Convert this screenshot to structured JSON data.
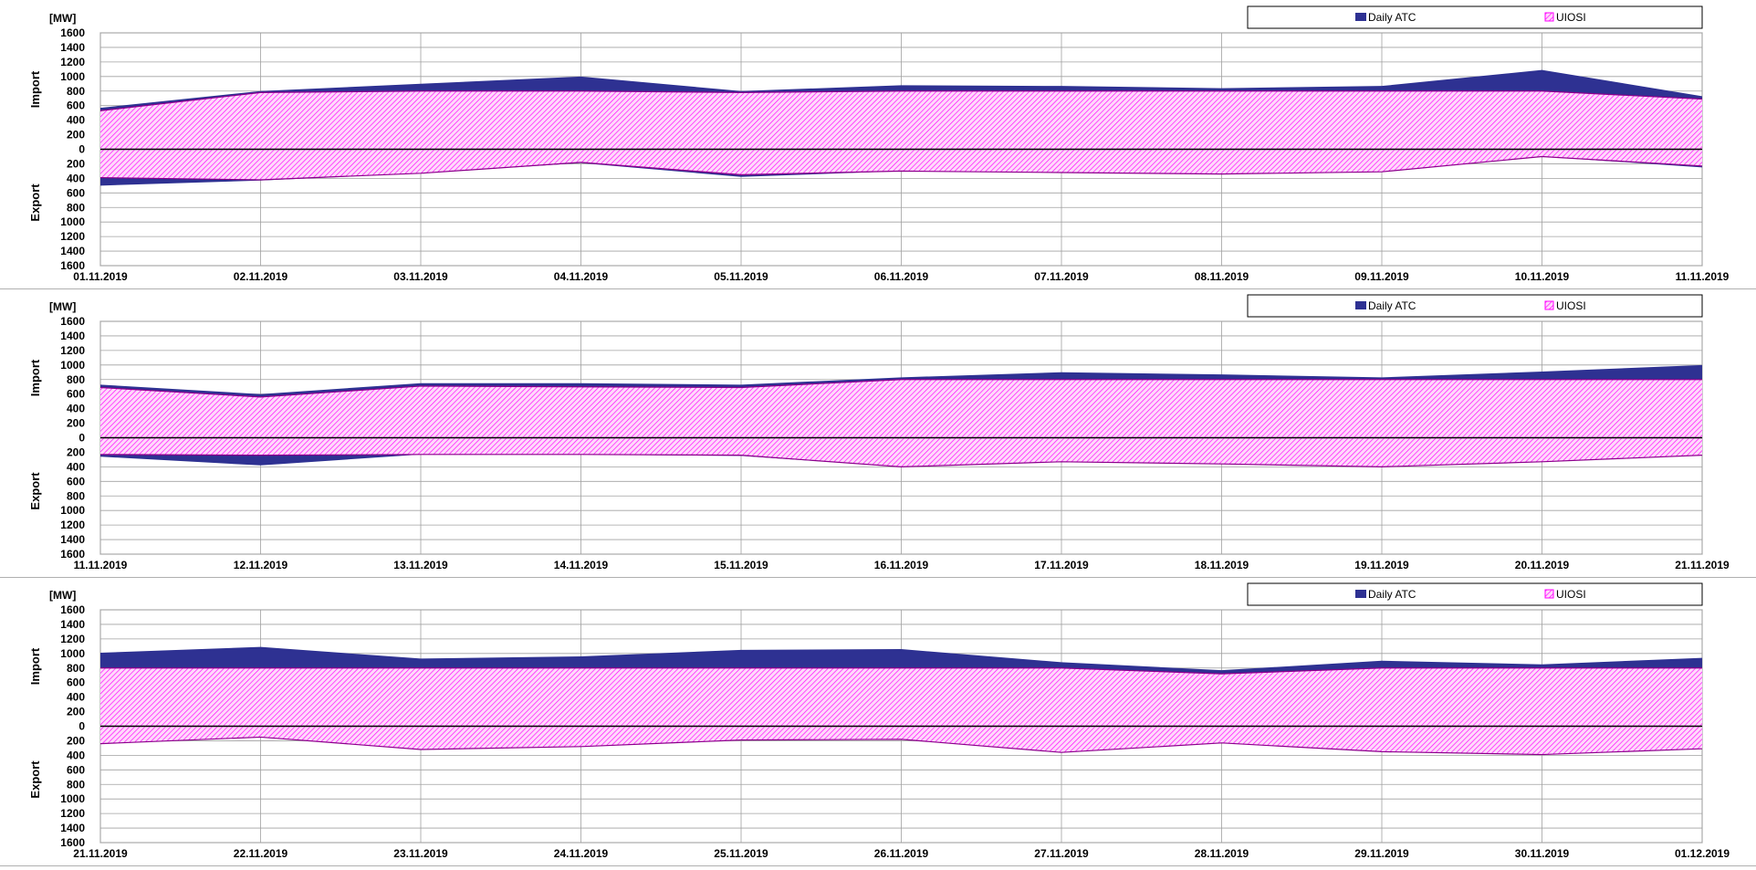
{
  "colors": {
    "atc": "#2E3192",
    "uiosi": "#FF00FF",
    "grid": "#A0A0A0",
    "zero_line": "#000000"
  },
  "legend": {
    "atc": "Daily ATC",
    "uiosi": "UIOSI",
    "position": "top-right"
  },
  "chart_data": [
    {
      "type": "area",
      "unit_label": "[MW]",
      "import_label": "Import",
      "export_label": "Export",
      "ylim": [
        -1600,
        1600
      ],
      "ticks": [
        "1600",
        "1400",
        "1200",
        "1000",
        "800",
        "600",
        "400",
        "200",
        "0",
        "200",
        "400",
        "600",
        "800",
        "1000",
        "1200",
        "1400",
        "1600"
      ],
      "x": [
        "01.11.2019",
        "02.11.2019",
        "03.11.2019",
        "04.11.2019",
        "05.11.2019",
        "06.11.2019",
        "07.11.2019",
        "08.11.2019",
        "09.11.2019",
        "10.11.2019",
        "11.11.2019"
      ],
      "series": [
        {
          "name": "Daily ATC",
          "import": [
            570,
            800,
            900,
            1000,
            800,
            880,
            870,
            840,
            870,
            1090,
            730
          ],
          "export": [
            -500,
            -430,
            -330,
            -190,
            -380,
            -300,
            -320,
            -340,
            -310,
            -100,
            -250
          ]
        },
        {
          "name": "UIOSI",
          "import": [
            530,
            780,
            800,
            800,
            780,
            800,
            800,
            800,
            800,
            800,
            690
          ],
          "export": [
            -390,
            -420,
            -330,
            -180,
            -350,
            -300,
            -320,
            -340,
            -310,
            -100,
            -230
          ]
        }
      ]
    },
    {
      "type": "area",
      "unit_label": "[MW]",
      "import_label": "Import",
      "export_label": "Export",
      "ylim": [
        -1600,
        1600
      ],
      "ticks": [
        "1600",
        "1400",
        "1200",
        "1000",
        "800",
        "600",
        "400",
        "200",
        "0",
        "200",
        "400",
        "600",
        "800",
        "1000",
        "1200",
        "1400",
        "1600"
      ],
      "x": [
        "11.11.2019",
        "12.11.2019",
        "13.11.2019",
        "14.11.2019",
        "15.11.2019",
        "16.11.2019",
        "17.11.2019",
        "18.11.2019",
        "19.11.2019",
        "20.11.2019",
        "21.11.2019"
      ],
      "series": [
        {
          "name": "Daily ATC",
          "import": [
            730,
            600,
            750,
            750,
            730,
            830,
            900,
            870,
            830,
            910,
            1000
          ],
          "export": [
            -260,
            -380,
            -230,
            -230,
            -250,
            -400,
            -330,
            -360,
            -400,
            -330,
            -240
          ]
        },
        {
          "name": "UIOSI",
          "import": [
            690,
            560,
            710,
            700,
            690,
            800,
            800,
            800,
            800,
            800,
            800
          ],
          "export": [
            -230,
            -240,
            -230,
            -230,
            -240,
            -400,
            -330,
            -360,
            -400,
            -330,
            -240
          ]
        }
      ]
    },
    {
      "type": "area",
      "unit_label": "[MW]",
      "import_label": "Import",
      "export_label": "Export",
      "ylim": [
        -1600,
        1600
      ],
      "ticks": [
        "1600",
        "1400",
        "1200",
        "1000",
        "800",
        "600",
        "400",
        "200",
        "0",
        "200",
        "400",
        "600",
        "800",
        "1000",
        "1200",
        "1400",
        "1600"
      ],
      "x": [
        "21.11.2019",
        "22.11.2019",
        "23.11.2019",
        "24.11.2019",
        "25.11.2019",
        "26.11.2019",
        "27.11.2019",
        "28.11.2019",
        "29.11.2019",
        "30.11.2019",
        "01.12.2019"
      ],
      "series": [
        {
          "name": "Daily ATC",
          "import": [
            1010,
            1090,
            930,
            960,
            1050,
            1060,
            880,
            770,
            900,
            850,
            940
          ],
          "export": [
            -240,
            -150,
            -320,
            -280,
            -190,
            -180,
            -360,
            -230,
            -350,
            -390,
            -310
          ]
        },
        {
          "name": "UIOSI",
          "import": [
            800,
            800,
            800,
            800,
            800,
            800,
            800,
            720,
            800,
            800,
            800
          ],
          "export": [
            -240,
            -150,
            -320,
            -280,
            -190,
            -180,
            -360,
            -230,
            -350,
            -390,
            -310
          ]
        }
      ]
    }
  ]
}
